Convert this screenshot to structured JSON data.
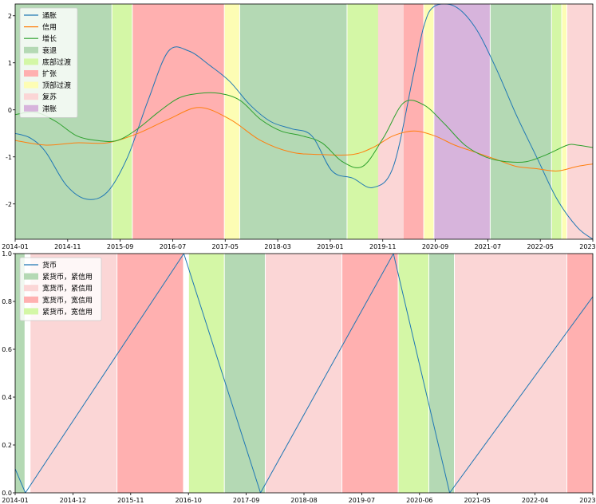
{
  "chart_data": [
    {
      "type": "line",
      "x_ticks": [
        "2014-01",
        "2014-11",
        "2015-09",
        "2016-07",
        "2017-05",
        "2018-03",
        "2019-01",
        "2019-11",
        "2020-09",
        "2021-07",
        "2022-05",
        "2023-03"
      ],
      "y_ticks": [
        "2",
        "1",
        "0",
        "-1",
        "-2"
      ],
      "ylim": [
        -2.75,
        2.25
      ],
      "xlim": [
        0,
        113
      ],
      "legend_position": "top-left",
      "series": [
        {
          "name": "通胀",
          "color": "#1f77b4",
          "x": [
            0,
            3,
            6,
            10,
            14,
            18,
            22,
            26,
            30,
            34,
            38,
            42,
            46,
            50,
            54,
            58,
            62,
            66,
            70,
            74,
            78,
            80,
            82,
            86,
            90,
            94,
            98,
            102,
            106,
            110,
            113
          ],
          "y": [
            -0.5,
            -0.6,
            -0.9,
            -1.6,
            -1.9,
            -1.75,
            -1.0,
            0.2,
            1.25,
            1.25,
            0.95,
            0.6,
            0.1,
            -0.25,
            -0.4,
            -0.55,
            -1.3,
            -1.45,
            -1.65,
            -1.2,
            0.8,
            1.8,
            2.2,
            2.2,
            1.75,
            0.9,
            -0.1,
            -1.0,
            -1.9,
            -2.5,
            -2.75
          ]
        },
        {
          "name": "信用",
          "color": "#ff7f0e",
          "x": [
            0,
            6,
            12,
            18,
            24,
            30,
            36,
            42,
            48,
            54,
            60,
            66,
            70,
            74,
            78,
            82,
            86,
            90,
            94,
            98,
            102,
            106,
            110,
            113
          ],
          "y": [
            -0.65,
            -0.75,
            -0.7,
            -0.7,
            -0.5,
            -0.2,
            0.05,
            -0.2,
            -0.65,
            -0.9,
            -0.95,
            -0.95,
            -0.8,
            -0.55,
            -0.45,
            -0.55,
            -0.75,
            -0.9,
            -1.05,
            -1.2,
            -1.25,
            -1.3,
            -1.2,
            -1.15
          ]
        },
        {
          "name": "增长",
          "color": "#2ca02c",
          "x": [
            0,
            4,
            8,
            12,
            16,
            20,
            24,
            28,
            32,
            36,
            40,
            44,
            48,
            52,
            56,
            60,
            64,
            68,
            72,
            76,
            80,
            84,
            88,
            92,
            96,
            100,
            104,
            108,
            110,
            113
          ],
          "y": [
            -0.1,
            -0.05,
            -0.25,
            -0.55,
            -0.65,
            -0.65,
            -0.4,
            -0.05,
            0.25,
            0.35,
            0.35,
            0.2,
            -0.2,
            -0.45,
            -0.55,
            -0.7,
            -1.1,
            -1.2,
            -0.6,
            0.15,
            0.1,
            -0.3,
            -0.75,
            -1.0,
            -1.1,
            -1.1,
            -0.95,
            -0.75,
            -0.75,
            -0.8
          ]
        }
      ],
      "regimes": [
        {
          "name": "衰退",
          "color": "#b4d9b4"
        },
        {
          "name": "底部过渡",
          "color": "#d4f7a6"
        },
        {
          "name": "扩张",
          "color": "#ffb0b0"
        },
        {
          "name": "顶部过渡",
          "color": "#fdfdb4"
        },
        {
          "name": "复苏",
          "color": "#fbd6d6"
        },
        {
          "name": "滞胀",
          "color": "#d7b4dc"
        }
      ],
      "bands": [
        {
          "start": 0,
          "end": 18,
          "regime": 0
        },
        {
          "start": 19,
          "end": 22,
          "regime": 1
        },
        {
          "start": 23,
          "end": 40,
          "regime": 2
        },
        {
          "start": 41,
          "end": 43,
          "regime": 3
        },
        {
          "start": 44,
          "end": 64,
          "regime": 0
        },
        {
          "start": 65,
          "end": 71,
          "regime": 1
        },
        {
          "start": 71,
          "end": 76,
          "regime": 4
        },
        {
          "start": 76,
          "end": 79,
          "regime": 2
        },
        {
          "start": 80,
          "end": 81,
          "regime": 3
        },
        {
          "start": 82,
          "end": 92,
          "regime": 5
        },
        {
          "start": 93,
          "end": 104,
          "regime": 0
        },
        {
          "start": 105,
          "end": 106,
          "regime": 1
        },
        {
          "start": 107,
          "end": 107,
          "regime": 3
        },
        {
          "start": 108,
          "end": 113,
          "regime": 4
        }
      ]
    },
    {
      "type": "line",
      "x_ticks": [
        "2014-01",
        "2014-12",
        "2015-11",
        "2016-10",
        "2017-09",
        "2018-08",
        "2019-07",
        "2020-06",
        "2021-05",
        "2022-04",
        "2023-03"
      ],
      "y_ticks": [
        "1.0",
        "0.8",
        "0.6",
        "0.4",
        "0.2",
        "0.0"
      ],
      "ylim": [
        0,
        1
      ],
      "xlim": [
        0,
        113
      ],
      "legend_position": "top-left",
      "series": [
        {
          "name": "货币",
          "color": "#1f77b4",
          "x": [
            0,
            2,
            33,
            48,
            74,
            85,
            113
          ],
          "y": [
            0.1,
            0.0,
            1.0,
            0.0,
            1.0,
            0.0,
            0.82
          ]
        }
      ],
      "regimes": [
        {
          "name": "紧货币，紧信用",
          "color": "#b4d9b4"
        },
        {
          "name": "宽货币，紧信用",
          "color": "#fbd6d6"
        },
        {
          "name": "宽货币，宽信用",
          "color": "#ffb0b0"
        },
        {
          "name": "紧货币，宽信用",
          "color": "#d4f7a6"
        }
      ],
      "bands": [
        {
          "start": 0,
          "end": 1,
          "regime": 0
        },
        {
          "start": 3,
          "end": 19,
          "regime": 1
        },
        {
          "start": 20,
          "end": 32,
          "regime": 2
        },
        {
          "start": 34,
          "end": 40,
          "regime": 3
        },
        {
          "start": 41,
          "end": 48,
          "regime": 0
        },
        {
          "start": 49,
          "end": 63,
          "regime": 1
        },
        {
          "start": 64,
          "end": 74,
          "regime": 2
        },
        {
          "start": 75,
          "end": 80,
          "regime": 3
        },
        {
          "start": 81,
          "end": 85,
          "regime": 0
        },
        {
          "start": 86,
          "end": 107,
          "regime": 1
        },
        {
          "start": 108,
          "end": 113,
          "regime": 2
        }
      ]
    }
  ]
}
